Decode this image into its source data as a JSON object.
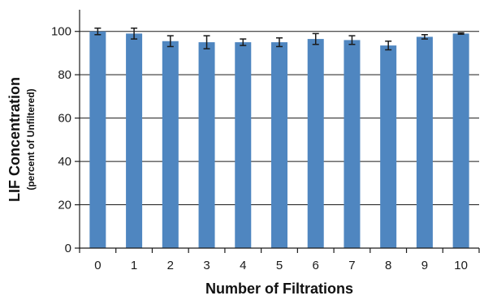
{
  "chart_data": {
    "type": "bar",
    "title": "",
    "xlabel": "Number of Filtrations",
    "ylabel": "LIF Concentration",
    "ylabel_sub": "(percent of Unfiltered)",
    "categories": [
      "0",
      "1",
      "2",
      "3",
      "4",
      "5",
      "6",
      "7",
      "8",
      "9",
      "10"
    ],
    "values": [
      100.0,
      99.0,
      95.5,
      95.0,
      95.0,
      95.0,
      96.5,
      96.0,
      93.5,
      97.5,
      99.0
    ],
    "error": [
      1.5,
      2.5,
      2.5,
      3.0,
      1.5,
      2.0,
      2.5,
      2.0,
      2.0,
      1.0,
      0.3
    ],
    "ylim": [
      0,
      110
    ],
    "yticks": [
      0,
      20,
      40,
      60,
      80,
      100
    ],
    "grid": true,
    "legend": "none",
    "bar_color": "#4f86c0",
    "error_color": "#1a1a1a",
    "grid_color": "#1a1a1a"
  }
}
